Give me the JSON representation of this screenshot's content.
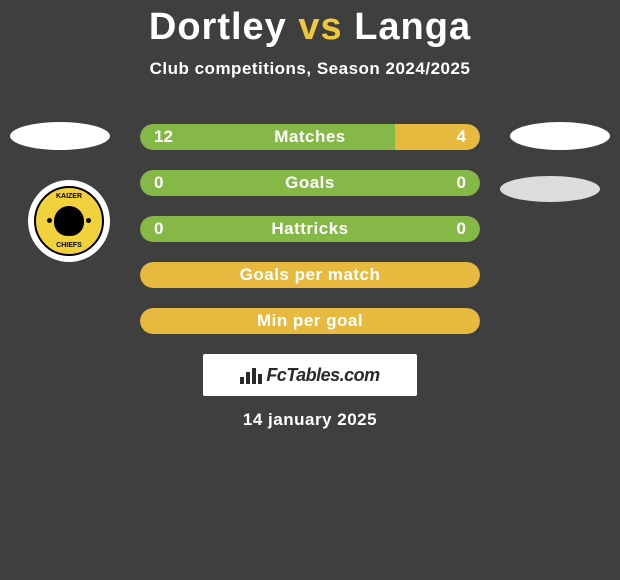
{
  "title": {
    "player1": "Dortley",
    "vs": "vs",
    "player2": "Langa",
    "player1_color": "#ffffff",
    "vs_color": "#f0c93a",
    "player2_color": "#ffffff"
  },
  "subtitle": "Club competitions, Season 2024/2025",
  "colors": {
    "background": "#3f3f40",
    "bar_green": "#86b847",
    "bar_yellow": "#e8b93f",
    "text": "#ffffff"
  },
  "club_badge": {
    "name": "Kaizer Chiefs",
    "top_text": "KAIZER",
    "bottom_text": "CHIEFS",
    "bg": "#f2d23c"
  },
  "stats": [
    {
      "label": "Matches",
      "left_value": "12",
      "right_value": "4",
      "left_pct": 75,
      "right_pct": 25,
      "left_color": "#86b847",
      "right_color": "#e8b93f"
    },
    {
      "label": "Goals",
      "left_value": "0",
      "right_value": "0",
      "left_pct": 100,
      "right_pct": 0,
      "left_color": "#86b847",
      "right_color": "#e8b93f"
    },
    {
      "label": "Hattricks",
      "left_value": "0",
      "right_value": "0",
      "left_pct": 100,
      "right_pct": 0,
      "left_color": "#86b847",
      "right_color": "#e8b93f"
    },
    {
      "label": "Goals per match",
      "left_value": "",
      "right_value": "",
      "left_pct": 0,
      "right_pct": 100,
      "left_color": "#86b847",
      "right_color": "#e8b93f"
    },
    {
      "label": "Min per goal",
      "left_value": "",
      "right_value": "",
      "left_pct": 0,
      "right_pct": 100,
      "left_color": "#86b847",
      "right_color": "#e8b93f"
    }
  ],
  "watermark": {
    "text": "FcTables.com"
  },
  "date": "14 january 2025"
}
